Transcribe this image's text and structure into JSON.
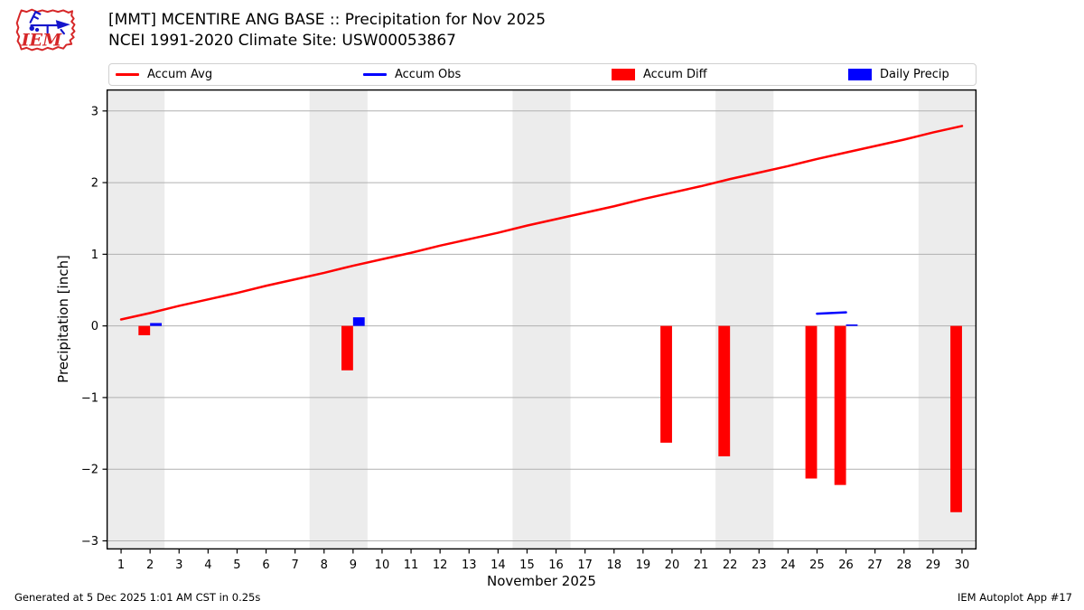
{
  "header": {
    "title_line1": "[MMT] MCENTIRE ANG BASE :: Precipitation for Nov 2025",
    "title_line2": "NCEI 1991-2020 Climate Site: USW00053867"
  },
  "logo": {
    "text": "IEM",
    "accent_red": "#d62728",
    "accent_blue": "#1515cc"
  },
  "legend": {
    "items": [
      {
        "label": "Accum Avg",
        "swatch": "line",
        "color": "#ff0000"
      },
      {
        "label": "Accum Obs",
        "swatch": "line",
        "color": "#0000ff"
      },
      {
        "label": "Accum Diff",
        "swatch": "patch",
        "color": "#ff0000"
      },
      {
        "label": "Daily Precip",
        "swatch": "patch",
        "color": "#0000ff"
      }
    ]
  },
  "chart_data": {
    "type": "line+bar",
    "title": "[MMT] MCENTIRE ANG BASE :: Precipitation for Nov 2025",
    "subtitle": "NCEI 1991-2020 Climate Site: USW00053867",
    "xlabel": "November 2025",
    "ylabel": "Precipitation [inch]",
    "xlim": [
      0.5,
      30.5
    ],
    "ylim": [
      -3.12,
      3.3
    ],
    "xticks": [
      1,
      2,
      3,
      4,
      5,
      6,
      7,
      8,
      9,
      10,
      11,
      12,
      13,
      14,
      15,
      16,
      17,
      18,
      19,
      20,
      21,
      22,
      23,
      24,
      25,
      26,
      27,
      28,
      29,
      30
    ],
    "yticks": [
      -3,
      -2,
      -1,
      0,
      1,
      2,
      3
    ],
    "ytick_labels": [
      "−3",
      "−2",
      "−1",
      "0",
      "1",
      "2",
      "3"
    ],
    "grid": true,
    "grid_color": "#b0b0b0",
    "weekend_bands": [
      [
        0.5,
        2.5
      ],
      [
        7.5,
        9.5
      ],
      [
        14.5,
        16.5
      ],
      [
        21.5,
        23.5
      ],
      [
        28.5,
        30.5
      ]
    ],
    "band_color": "#ececec",
    "series": [
      {
        "name": "Accum Avg",
        "type": "line",
        "color": "#ff0000",
        "line_width": 2.5,
        "x": [
          1,
          2,
          3,
          4,
          5,
          6,
          7,
          8,
          9,
          10,
          11,
          12,
          13,
          14,
          15,
          16,
          17,
          18,
          19,
          20,
          21,
          22,
          23,
          24,
          25,
          26,
          27,
          28,
          29,
          30
        ],
        "y": [
          0.09,
          0.18,
          0.28,
          0.37,
          0.46,
          0.56,
          0.65,
          0.74,
          0.84,
          0.93,
          1.02,
          1.12,
          1.21,
          1.3,
          1.4,
          1.49,
          1.58,
          1.67,
          1.77,
          1.86,
          1.95,
          2.05,
          2.14,
          2.23,
          2.33,
          2.42,
          2.51,
          2.6,
          2.7,
          2.79
        ]
      },
      {
        "name": "Accum Obs",
        "type": "line",
        "color": "#0000ff",
        "line_width": 2.5,
        "segments": [
          [
            [
              25,
              0.17
            ],
            [
              26,
              0.19
            ]
          ]
        ]
      },
      {
        "name": "Accum Diff",
        "type": "bar",
        "color": "#ff0000",
        "offset": -0.4,
        "bar_width": 0.4,
        "x": [
          2,
          9,
          20,
          22,
          25,
          26,
          30
        ],
        "y": [
          -0.13,
          -0.62,
          -1.63,
          -1.82,
          -2.13,
          -2.22,
          -2.6
        ]
      },
      {
        "name": "Daily Precip",
        "type": "bar",
        "color": "#0000ff",
        "offset": 0,
        "bar_width": 0.4,
        "x": [
          2,
          9,
          26
        ],
        "y": [
          0.04,
          0.12,
          0.02
        ]
      }
    ]
  },
  "footer": {
    "generated": "Generated at 5 Dec 2025 1:01 AM CST in 0.25s",
    "app": "IEM Autoplot App #17"
  }
}
